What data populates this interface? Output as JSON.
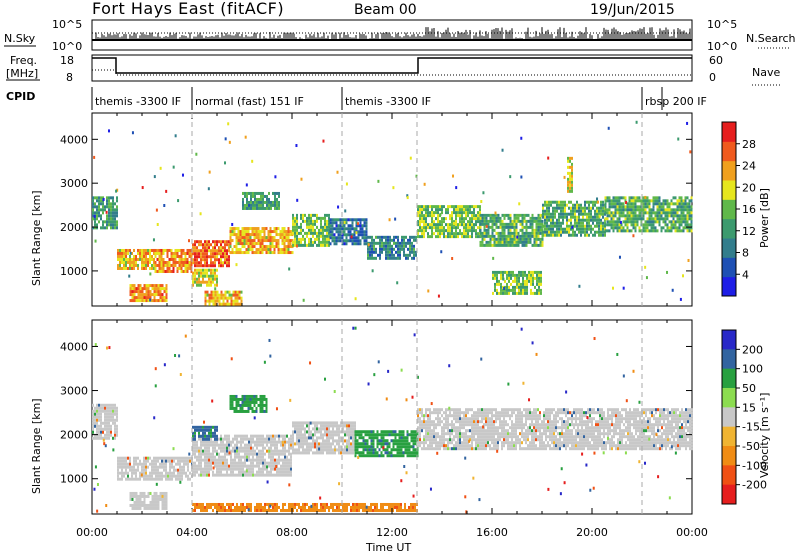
{
  "header": {
    "station": "Fort Hays East (fitACF)",
    "beam": "Beam 00",
    "date": "19/Jun/2015"
  },
  "sky_panel": {
    "left_label": "N.Sky",
    "right_label": "N.Search",
    "tick_top": "10^5",
    "tick_bottom": "10^0",
    "right_tick_top": "10^5",
    "right_tick_bottom": "10^0"
  },
  "freq_panel": {
    "left_label_line1": "Freq.",
    "left_label_line2": "[MHz]",
    "right_label": "Nave",
    "tick_top": "18",
    "tick_bottom": "8",
    "right_tick_top": "60",
    "right_tick_bottom": "0"
  },
  "cpid": {
    "label": "CPID",
    "segments": [
      {
        "label": "themis -3300 IF",
        "start_hour": 0,
        "end_hour": 4
      },
      {
        "label": "normal (fast) 151 IF",
        "start_hour": 4,
        "end_hour": 10
      },
      {
        "label": "themis -3300 IF",
        "start_hour": 10,
        "end_hour": 22
      },
      {
        "label": "rbsp 200 IF",
        "start_hour": 22,
        "end_hour": 24
      }
    ]
  },
  "colors": {
    "power_scale": [
      "#1e1ee6",
      "#1e50b4",
      "#327d8c",
      "#3c9a6e",
      "#60b84a",
      "#e6e61e",
      "#f0a01e",
      "#f05a1e",
      "#e61e1e"
    ],
    "velocity_scale": [
      "#2828c8",
      "#3264a0",
      "#28a040",
      "#8cdc50",
      "#c8c8c8",
      "#f0b432",
      "#f08c14",
      "#f05014",
      "#e61e1e"
    ],
    "groundscatter": "#c8c8c8"
  },
  "chart_data": [
    {
      "type": "heatmap",
      "name": "Power",
      "ylabel": "Slant Range [km]",
      "x_unit_hours": [
        0,
        24
      ],
      "ylim": [
        200,
        4600
      ],
      "yticks": [
        1000,
        2000,
        3000,
        4000
      ],
      "colorbar": {
        "label": "Power [dB]",
        "ticks": [
          4,
          8,
          12,
          16,
          20,
          24,
          28
        ],
        "range": [
          0,
          32
        ]
      },
      "bands": [
        {
          "t0": 0.0,
          "t1": 1.0,
          "r0": 1950,
          "r1": 2700,
          "power": 12
        },
        {
          "t0": 1.0,
          "t1": 2.5,
          "r0": 1050,
          "r1": 1500,
          "power": 22
        },
        {
          "t0": 2.5,
          "t1": 4.0,
          "r0": 1000,
          "r1": 1500,
          "power": 24
        },
        {
          "t0": 4.0,
          "t1": 5.5,
          "r0": 1100,
          "r1": 1700,
          "power": 26
        },
        {
          "t0": 5.5,
          "t1": 8.0,
          "r0": 1400,
          "r1": 2000,
          "power": 22
        },
        {
          "t0": 8.0,
          "t1": 9.5,
          "r0": 1600,
          "r1": 2300,
          "power": 16
        },
        {
          "t0": 9.5,
          "t1": 11.0,
          "r0": 1600,
          "r1": 2200,
          "power": 8
        },
        {
          "t0": 11.0,
          "t1": 13.0,
          "r0": 1300,
          "r1": 1800,
          "power": 10
        },
        {
          "t0": 13.0,
          "t1": 15.5,
          "r0": 1800,
          "r1": 2500,
          "power": 16
        },
        {
          "t0": 15.5,
          "t1": 18.0,
          "r0": 1600,
          "r1": 2300,
          "power": 14
        },
        {
          "t0": 18.0,
          "t1": 20.5,
          "r0": 1800,
          "r1": 2600,
          "power": 14
        },
        {
          "t0": 20.5,
          "t1": 24.0,
          "r0": 1900,
          "r1": 2700,
          "power": 14
        },
        {
          "t0": 1.5,
          "t1": 3.0,
          "r0": 300,
          "r1": 700,
          "power": 24
        },
        {
          "t0": 4.0,
          "t1": 5.0,
          "r0": 650,
          "r1": 1050,
          "power": 20
        },
        {
          "t0": 4.5,
          "t1": 6.0,
          "r0": 250,
          "r1": 550,
          "power": 22
        },
        {
          "t0": 6.0,
          "t1": 7.5,
          "r0": 2400,
          "r1": 2800,
          "power": 12
        },
        {
          "t0": 16.0,
          "t1": 18.0,
          "r0": 500,
          "r1": 1000,
          "power": 16
        },
        {
          "t0": 19.0,
          "t1": 19.2,
          "r0": 2800,
          "r1": 3600,
          "power": 20
        }
      ]
    },
    {
      "type": "heatmap",
      "name": "Velocity",
      "ylabel": "Slant Range [km]",
      "xlabel": "Time UT",
      "xticks": [
        "00:00",
        "04:00",
        "08:00",
        "12:00",
        "16:00",
        "20:00",
        "00:00"
      ],
      "ylim": [
        200,
        4600
      ],
      "yticks": [
        1000,
        2000,
        3000,
        4000
      ],
      "colorbar": {
        "label": "Velocity [m s⁻¹]",
        "ticks": [
          200,
          100,
          50,
          15,
          -15,
          -50,
          -100,
          -200
        ]
      },
      "bands": [
        {
          "t0": 0.0,
          "t1": 1.0,
          "r0": 1950,
          "r1": 2700,
          "vel": 0
        },
        {
          "t0": 1.0,
          "t1": 4.0,
          "r0": 1000,
          "r1": 1500,
          "vel": 0
        },
        {
          "t0": 4.0,
          "t1": 8.0,
          "r0": 1100,
          "r1": 2000,
          "vel": 0
        },
        {
          "t0": 8.0,
          "t1": 10.5,
          "r0": 1600,
          "r1": 2300,
          "vel": 0
        },
        {
          "t0": 10.5,
          "t1": 13.0,
          "r0": 1500,
          "r1": 2100,
          "vel": 60
        },
        {
          "t0": 13.0,
          "t1": 24.0,
          "r0": 1700,
          "r1": 2600,
          "vel": 0
        },
        {
          "t0": 4.0,
          "t1": 5.0,
          "r0": 1900,
          "r1": 2200,
          "vel": 90
        },
        {
          "t0": 5.5,
          "t1": 7.0,
          "r0": 2500,
          "r1": 2900,
          "vel": 60
        },
        {
          "t0": 4.0,
          "t1": 13.0,
          "r0": 250,
          "r1": 450,
          "vel": -60
        },
        {
          "t0": 1.5,
          "t1": 3.0,
          "r0": 300,
          "r1": 700,
          "vel": 0
        }
      ]
    }
  ],
  "x_axis": {
    "label": "Time UT",
    "ticks": [
      "00:00",
      "04:00",
      "08:00",
      "12:00",
      "16:00",
      "20:00",
      "00:00"
    ]
  },
  "power_axis": {
    "ylabel": "Slant Range [km]",
    "ticks": [
      "1000",
      "2000",
      "3000",
      "4000"
    ],
    "colorbar_label": "Power [dB]",
    "colorbar_ticks": [
      "4",
      "8",
      "12",
      "16",
      "20",
      "24",
      "28"
    ]
  },
  "velocity_axis": {
    "ylabel": "Slant Range [km]",
    "ticks": [
      "1000",
      "2000",
      "3000",
      "4000"
    ],
    "colorbar_label": "Velocity [m s⁻¹]",
    "colorbar_ticks": [
      "200",
      "100",
      "50",
      "15",
      "-15",
      "-50",
      "-100",
      "-200"
    ]
  }
}
